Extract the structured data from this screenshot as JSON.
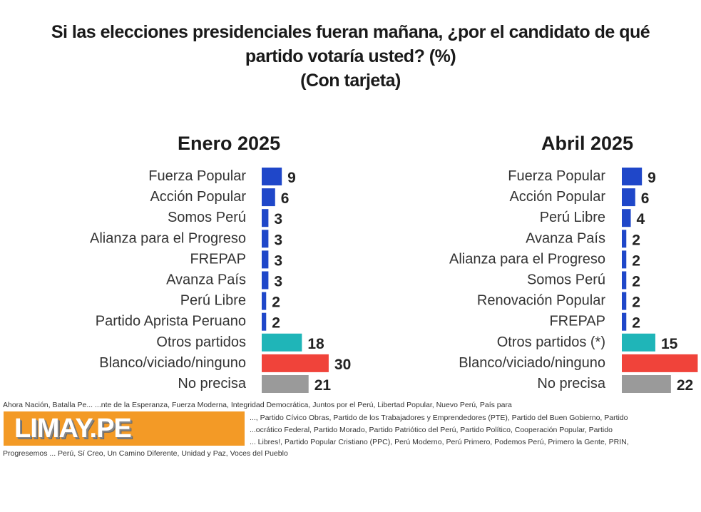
{
  "title": [
    "Si las elecciones presidenciales fueran mañana, ¿por el candidato de qué",
    "partido votaría usted? (%)",
    "(Con tarjeta)"
  ],
  "chart_data": [
    {
      "type": "bar",
      "title": "Enero 2025",
      "categories": [
        "Fuerza Popular",
        "Acción Popular",
        "Somos Perú",
        "Alianza para el Progreso",
        "FREPAP",
        "Avanza País",
        "Perú Libre",
        "Partido Aprista Peruano",
        "Otros partidos",
        "Blanco/viciado/ninguno",
        "No precisa"
      ],
      "values": [
        9,
        6,
        3,
        3,
        3,
        3,
        2,
        2,
        18,
        30,
        21
      ],
      "labels": [
        "9",
        "6",
        "3",
        "3",
        "3",
        "3",
        "2",
        "2",
        "18",
        "30",
        "21"
      ]
    },
    {
      "type": "bar",
      "title": "Abril 2025",
      "categories": [
        "Fuerza Popular",
        "Acción Popular",
        "Perú Libre",
        "Avanza País",
        "Alianza para el Progreso",
        "Somos Perú",
        "Renovación Popular",
        "FREPAP",
        "Otros partidos (*)",
        "Blanco/viciado/ninguno",
        "No precisa"
      ],
      "values": [
        9,
        6,
        4,
        2,
        2,
        2,
        2,
        2,
        15,
        34,
        22
      ],
      "labels": [
        "9",
        "6",
        "4",
        "2",
        "2",
        "2",
        "2",
        "2",
        "15",
        "",
        "22"
      ]
    }
  ],
  "colors": {
    "party": "#1f47c9",
    "otros": "#1fb5b8",
    "blanco": "#f0433a",
    "noprecisa": "#9a9a9a"
  },
  "footnote": [
    "Ahora Nación, Batalla Pe... ...nte de la Esperanza, Fuerza Moderna, Integridad Democrática, Juntos por el Perú, Libertad Popular, Nuevo Perú, País para",
    "..., Partido Cívico Obras, Partido de los Trabajadores y Emprendedores (PTE), Partido del Buen Gobierno, Partido",
    "...ocrático Federal, Partido Morado, Partido Patriótico del Perú, Partido Político, Cooperación Popular, Partido",
    "... Libres!, Partido Popular Cristiano (PPC), Perú Moderno, Perú Primero, Podemos Perú, Primero la Gente, PRIN,",
    "Progresemos ... Perú, Sí Creo, Un Camino Diferente, Unidad y Paz, Voces del Pueblo"
  ],
  "watermark": "LIMAY.PE"
}
